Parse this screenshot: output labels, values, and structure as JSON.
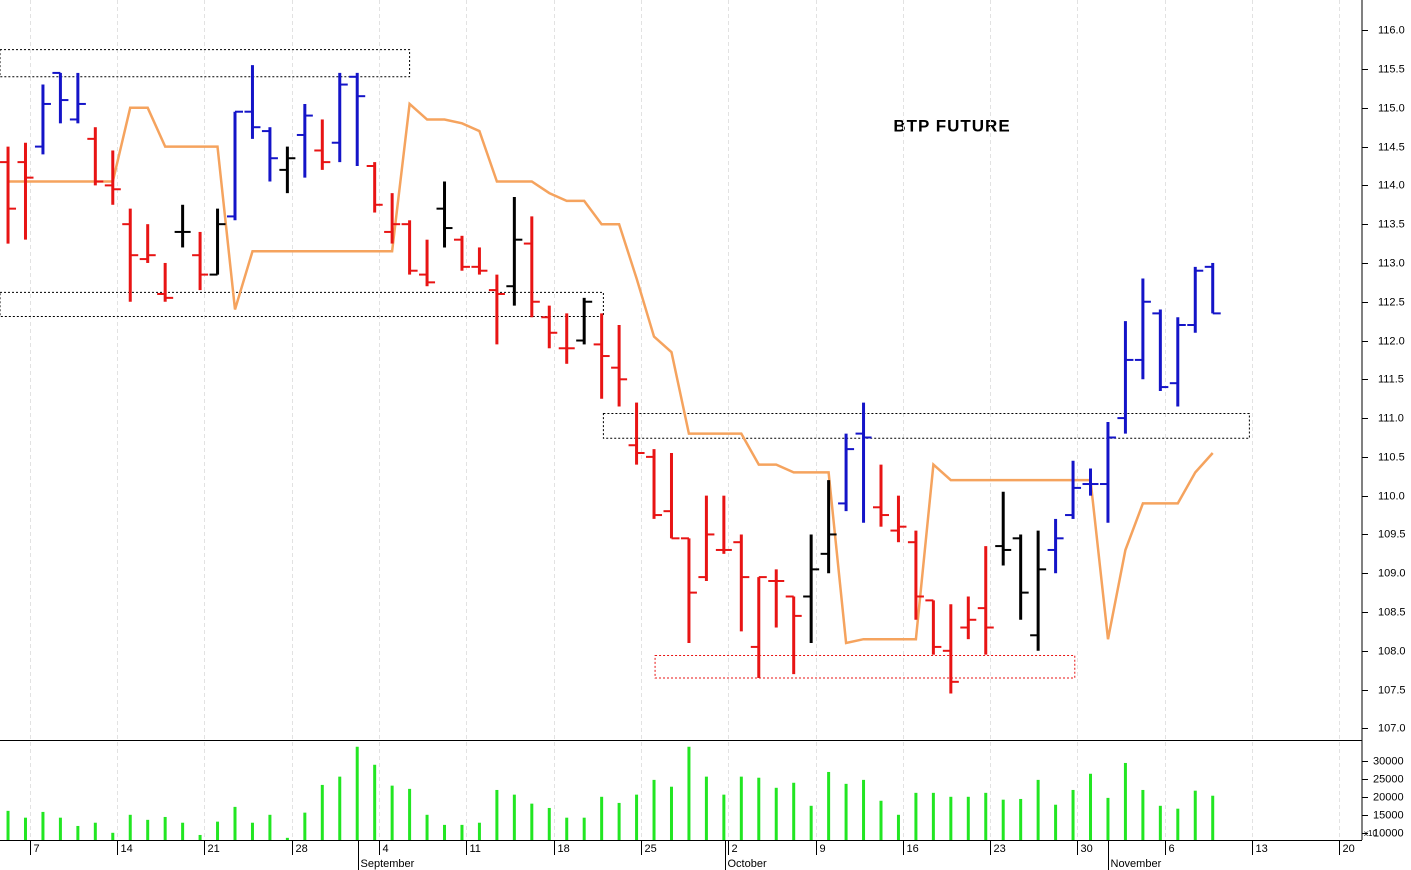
{
  "chart_data": {
    "type": "ohlc",
    "title": "BTP FUTURE",
    "xlim": [
      -0.46,
      77.55
    ],
    "ylim": [
      106.85,
      116.39
    ],
    "xticks": [
      {
        "value": 1.25,
        "label": "7"
      },
      {
        "value": 6.25,
        "label": "14"
      },
      {
        "value": 11.25,
        "label": "21"
      },
      {
        "value": 16.25,
        "label": "28"
      },
      {
        "value": 21.25,
        "label": "4"
      },
      {
        "value": 26.25,
        "label": "11"
      },
      {
        "value": 31.25,
        "label": "18"
      },
      {
        "value": 36.25,
        "label": "25"
      },
      {
        "value": 41.25,
        "label": "2"
      },
      {
        "value": 46.25,
        "label": "9"
      },
      {
        "value": 51.25,
        "label": "16"
      },
      {
        "value": 56.25,
        "label": "23"
      },
      {
        "value": 61.25,
        "label": "30"
      },
      {
        "value": 66.25,
        "label": "6"
      },
      {
        "value": 71.25,
        "label": "13"
      },
      {
        "value": 76.25,
        "label": "20"
      }
    ],
    "months": [
      {
        "value": 20.05,
        "label": "September"
      },
      {
        "value": 41.07,
        "label": "October"
      },
      {
        "value": 63.0,
        "label": "November"
      }
    ],
    "yticks": [
      {
        "value": 107,
        "label": "107.0"
      },
      {
        "value": 107.5,
        "label": "107.5"
      },
      {
        "value": 108,
        "label": "108.0"
      },
      {
        "value": 108.5,
        "label": "108.5"
      },
      {
        "value": 109,
        "label": "109.0"
      },
      {
        "value": 109.5,
        "label": "109.5"
      },
      {
        "value": 110,
        "label": "110.0"
      },
      {
        "value": 110.5,
        "label": "110.5"
      },
      {
        "value": 111,
        "label": "111.0"
      },
      {
        "value": 111.5,
        "label": "111.5"
      },
      {
        "value": 112,
        "label": "112.0"
      },
      {
        "value": 112.5,
        "label": "112.5"
      },
      {
        "value": 113,
        "label": "113.0"
      },
      {
        "value": 113.5,
        "label": "113.5"
      },
      {
        "value": 114,
        "label": "114.0"
      },
      {
        "value": 114.5,
        "label": "114.5"
      },
      {
        "value": 115,
        "label": "115.0"
      },
      {
        "value": 115.5,
        "label": "115.5"
      },
      {
        "value": 116,
        "label": "116.0"
      }
    ],
    "grid": true,
    "open": [
      114.3,
      114.3,
      114.5,
      115.45,
      114.85,
      114.6,
      114.0,
      113.5,
      113.05,
      112.6,
      113.4,
      113.1,
      112.85,
      113.6,
      114.95,
      114.7,
      114.2,
      114.65,
      114.45,
      114.55,
      115.4,
      114.25,
      113.4,
      113.5,
      112.85,
      113.7,
      113.3,
      112.95,
      112.65,
      112.7,
      113.25,
      112.3,
      111.9,
      112.0,
      111.95,
      111.65,
      110.65,
      110.5,
      109.8,
      109.45,
      108.95,
      109.3,
      109.4,
      108.05,
      108.9,
      108.7,
      108.7,
      109.25,
      109.9,
      110.8,
      109.85,
      109.55,
      109.4,
      108.65,
      108.0,
      108.3,
      108.55,
      109.35,
      109.45,
      108.2,
      109.3,
      109.75,
      110.15,
      110.15,
      111.0,
      111.75,
      112.35,
      111.45,
      112.2,
      112.95
    ],
    "high": [
      114.5,
      114.55,
      115.3,
      115.45,
      115.45,
      114.75,
      114.45,
      113.7,
      113.5,
      113.0,
      113.75,
      113.4,
      113.7,
      114.95,
      115.55,
      114.75,
      114.5,
      115.05,
      114.85,
      115.45,
      115.45,
      114.3,
      113.9,
      113.55,
      113.3,
      114.05,
      113.35,
      113.2,
      112.85,
      113.85,
      113.6,
      112.45,
      112.35,
      112.55,
      112.35,
      112.2,
      111.2,
      110.6,
      110.55,
      109.45,
      110.0,
      110.0,
      109.5,
      108.95,
      109.05,
      108.7,
      109.5,
      110.2,
      110.8,
      111.2,
      110.4,
      110.0,
      109.55,
      108.65,
      108.6,
      108.7,
      109.35,
      110.05,
      109.5,
      109.55,
      109.7,
      110.45,
      110.35,
      110.95,
      112.25,
      112.8,
      112.4,
      112.3,
      112.95,
      113.0
    ],
    "low": [
      113.25,
      113.3,
      114.4,
      114.8,
      114.8,
      114.0,
      113.75,
      112.5,
      113.0,
      112.5,
      113.2,
      112.65,
      112.85,
      113.55,
      114.6,
      114.05,
      113.9,
      114.1,
      114.2,
      114.3,
      114.25,
      113.65,
      113.25,
      112.85,
      112.7,
      113.2,
      112.9,
      112.85,
      111.95,
      112.45,
      112.3,
      111.9,
      111.7,
      111.95,
      111.25,
      111.15,
      110.4,
      109.7,
      109.45,
      108.1,
      108.9,
      109.25,
      108.25,
      107.65,
      108.3,
      107.7,
      108.1,
      109.0,
      109.8,
      109.65,
      109.6,
      109.4,
      108.4,
      107.95,
      107.45,
      108.15,
      107.95,
      109.1,
      108.4,
      108.0,
      109.0,
      109.7,
      110.0,
      109.65,
      110.8,
      111.5,
      111.35,
      111.15,
      112.1,
      112.35
    ],
    "close": [
      113.7,
      114.1,
      115.05,
      115.1,
      115.05,
      114.05,
      113.95,
      113.1,
      113.1,
      112.55,
      113.4,
      112.85,
      113.5,
      114.95,
      114.75,
      114.35,
      114.35,
      114.9,
      114.3,
      115.3,
      115.15,
      113.75,
      113.5,
      112.9,
      112.75,
      113.45,
      112.95,
      112.9,
      112.6,
      113.3,
      112.5,
      112.1,
      111.9,
      112.5,
      111.8,
      111.5,
      110.55,
      109.75,
      109.45,
      108.75,
      109.5,
      109.3,
      108.95,
      108.95,
      108.9,
      108.45,
      109.05,
      109.5,
      110.6,
      110.75,
      109.75,
      109.6,
      108.7,
      108.05,
      107.6,
      108.4,
      108.3,
      109.3,
      108.75,
      109.05,
      109.45,
      110.1,
      110.15,
      110.75,
      111.75,
      112.5,
      111.4,
      112.2,
      112.9,
      112.35
    ],
    "colors": [
      "#e81414",
      "#e81414",
      "#1414c8",
      "#1414c8",
      "#1414c8",
      "#e81414",
      "#e81414",
      "#e81414",
      "#e81414",
      "#e81414",
      "#000000",
      "#e81414",
      "#000000",
      "#1414c8",
      "#1414c8",
      "#1414c8",
      "#000000",
      "#1414c8",
      "#e81414",
      "#1414c8",
      "#1414c8",
      "#e81414",
      "#e81414",
      "#e81414",
      "#e81414",
      "#000000",
      "#e81414",
      "#e81414",
      "#e81414",
      "#000000",
      "#e81414",
      "#e81414",
      "#e81414",
      "#000000",
      "#e81414",
      "#e81414",
      "#e81414",
      "#e81414",
      "#e81414",
      "#e81414",
      "#e81414",
      "#e81414",
      "#e81414",
      "#e81414",
      "#e81414",
      "#e81414",
      "#000000",
      "#000000",
      "#1414c8",
      "#1414c8",
      "#e81414",
      "#e81414",
      "#e81414",
      "#e81414",
      "#e81414",
      "#e81414",
      "#e81414",
      "#000000",
      "#000000",
      "#000000",
      "#1414c8",
      "#1414c8",
      "#1414c8",
      "#1414c8",
      "#1414c8",
      "#1414c8",
      "#1414c8",
      "#1414c8",
      "#1414c8",
      "#1414c8"
    ],
    "line": {
      "color": "#f5a35e",
      "values": [
        114.05,
        114.05,
        114.05,
        114.05,
        114.05,
        114.05,
        114.05,
        115.0,
        115.0,
        114.5,
        114.5,
        114.5,
        114.5,
        112.4,
        113.15,
        113.15,
        113.15,
        113.15,
        113.15,
        113.15,
        113.15,
        113.15,
        113.15,
        115.05,
        114.85,
        114.85,
        114.8,
        114.7,
        114.05,
        114.05,
        114.05,
        113.9,
        113.8,
        113.8,
        113.5,
        113.5,
        112.8,
        112.05,
        111.85,
        110.8,
        110.8,
        110.8,
        110.8,
        110.4,
        110.4,
        110.3,
        110.3,
        110.3,
        108.1,
        108.15,
        108.15,
        108.15,
        108.15,
        110.4,
        110.2,
        110.2,
        110.2,
        110.2,
        110.2,
        110.2,
        110.2,
        110.2,
        110.2,
        108.15,
        109.3,
        109.9,
        109.9,
        109.9,
        110.3,
        110.55
      ]
    },
    "zones": [
      {
        "x": [
          -0.46,
          23.0
        ],
        "y": [
          115.4,
          115.75
        ],
        "color": "#000000"
      },
      {
        "x": [
          -0.46,
          34.1
        ],
        "y": [
          112.31,
          112.62
        ],
        "color": "#000000"
      },
      {
        "x": [
          34.1,
          71.1
        ],
        "y": [
          110.74,
          111.06
        ],
        "color": "#000000"
      },
      {
        "x": [
          37.06,
          61.1
        ],
        "y": [
          107.65,
          107.94
        ],
        "color": "#e81414"
      }
    ],
    "volume": {
      "color": "#22e622",
      "ylim": [
        8000,
        35500
      ],
      "yticks": [
        10000,
        15000,
        20000,
        25000,
        30000
      ],
      "multiplier": "x10",
      "values": [
        16100,
        14200,
        15800,
        14200,
        11900,
        12800,
        10000,
        15000,
        13600,
        14400,
        12800,
        9400,
        13100,
        17200,
        12800,
        15000,
        8600,
        15600,
        23300,
        25600,
        33900,
        28900,
        23100,
        22200,
        15000,
        12200,
        12200,
        12800,
        21900,
        20600,
        18100,
        16900,
        14200,
        14200,
        20000,
        18300,
        20600,
        24700,
        22800,
        33900,
        25600,
        20600,
        25600,
        25300,
        22500,
        23900,
        17500,
        26900,
        23600,
        24700,
        18900,
        15000,
        21100,
        21100,
        20000,
        20000,
        21100,
        19200,
        19400,
        24700,
        17800,
        21900,
        26400,
        19700,
        29400,
        21900,
        17500,
        16700,
        21700,
        20300
      ]
    }
  }
}
